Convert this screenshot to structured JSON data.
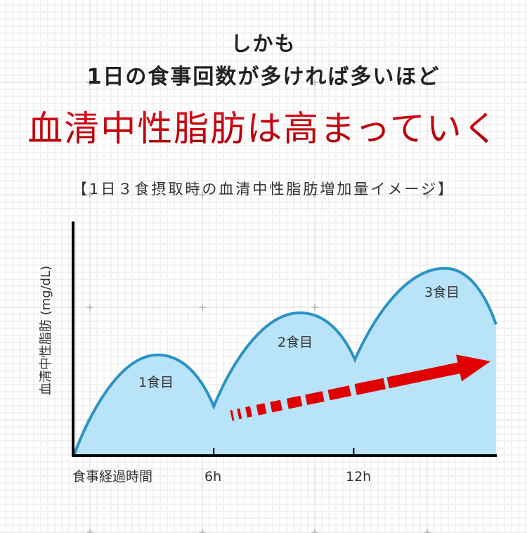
{
  "header": {
    "lead": "しかも",
    "subtitle": "1日の食事回数が多ければ多いほど",
    "headline": "血清中性脂肪は高まっていく"
  },
  "chart": {
    "title": "【1日３食摂取時の血清中性脂肪増加量イメージ】",
    "ylabel": "血清中性脂肪 (mg/dL)",
    "xlabel": "食事経過時間",
    "xtick_labels": [
      "6h",
      "12h"
    ],
    "meal_labels": [
      "1食目",
      "2食目",
      "3食目"
    ]
  },
  "colors": {
    "headline_red": "#c4000c",
    "curve_stroke": "#2b93c4",
    "curve_fill": "#b9e3f8",
    "trend_arrow": "#e00000",
    "axis": "#000000",
    "text": "#333333"
  },
  "chart_data": {
    "type": "area",
    "title": "【1日３食摂取時の血清中性脂肪増加量イメージ】",
    "xlabel": "食事経過時間",
    "ylabel": "血清中性脂肪 (mg/dL)",
    "x_ticks": [
      6,
      12
    ],
    "x_tick_labels": [
      "6h",
      "12h"
    ],
    "xlim": [
      0,
      18.1
    ],
    "ylim": [
      0,
      100
    ],
    "grid": false,
    "series": [
      {
        "name": "血清中性脂肪",
        "points": [
          {
            "x": 0,
            "y": 0,
            "kind": "start"
          },
          {
            "x": 3.6,
            "y": 43,
            "kind": "peak",
            "label": "1食目"
          },
          {
            "x": 6.0,
            "y": 21,
            "kind": "valley"
          },
          {
            "x": 9.7,
            "y": 61,
            "kind": "peak",
            "label": "2食目"
          },
          {
            "x": 12.05,
            "y": 41,
            "kind": "valley"
          },
          {
            "x": 15.9,
            "y": 80,
            "kind": "peak",
            "label": "3食目"
          },
          {
            "x": 18.1,
            "y": 56,
            "kind": "end"
          }
        ]
      }
    ],
    "annotations": [
      "1食目",
      "2食目",
      "3食目"
    ],
    "trend": "dashed red arrow rising left-to-right (increasing baseline)"
  }
}
